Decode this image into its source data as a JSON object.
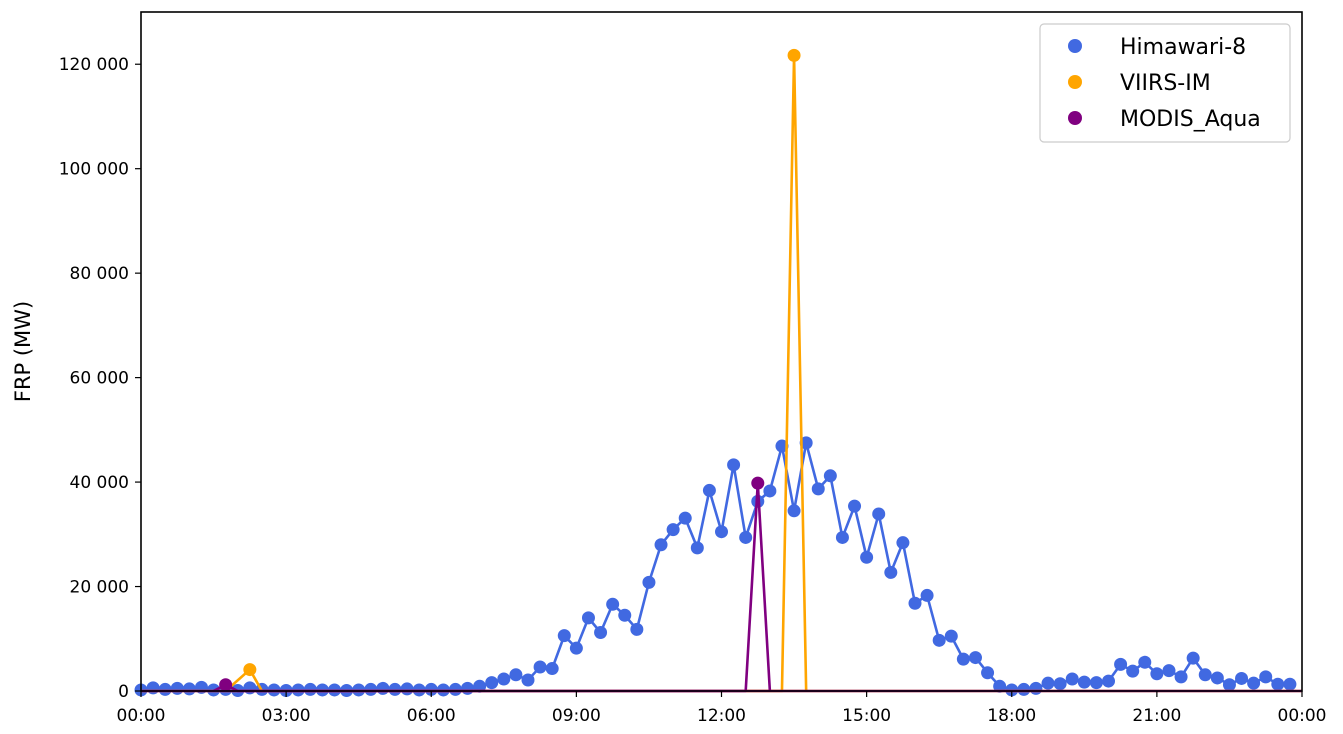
{
  "chart_data": {
    "type": "line",
    "title": "",
    "xlabel": "",
    "ylabel": "FRP (MW)",
    "x_tick_labels": [
      "00:00",
      "03:00",
      "06:00",
      "09:00",
      "12:00",
      "15:00",
      "18:00",
      "21:00",
      "00:00"
    ],
    "y_tick_labels": [
      "0",
      "20 000",
      "40 000",
      "60 000",
      "80 000",
      "100 000",
      "120 000"
    ],
    "y_ticks": [
      0,
      20000,
      40000,
      60000,
      80000,
      100000,
      120000
    ],
    "xlim_hours": [
      0,
      24
    ],
    "ylim": [
      0,
      130000
    ],
    "grid": false,
    "legend_position": "top-right",
    "series": [
      {
        "name": "Himawari-8",
        "color": "#4169e1",
        "x_hours": [
          0.0,
          0.25,
          0.5,
          0.75,
          1.0,
          1.25,
          1.5,
          1.75,
          2.0,
          2.25,
          2.5,
          2.75,
          3.0,
          3.25,
          3.5,
          3.75,
          4.0,
          4.25,
          4.5,
          4.75,
          5.0,
          5.25,
          5.5,
          5.75,
          6.0,
          6.25,
          6.5,
          6.75,
          7.0,
          7.25,
          7.5,
          7.75,
          8.0,
          8.25,
          8.5,
          8.75,
          9.0,
          9.25,
          9.5,
          9.75,
          10.0,
          10.25,
          10.5,
          10.75,
          11.0,
          11.25,
          11.5,
          11.75,
          12.0,
          12.25,
          12.5,
          12.75,
          13.0,
          13.25,
          13.5,
          13.75,
          14.0,
          14.25,
          14.5,
          14.75,
          15.0,
          15.25,
          15.5,
          15.75,
          16.0,
          16.25,
          16.5,
          16.75,
          17.0,
          17.25,
          17.5,
          17.75,
          18.0,
          18.25,
          18.5,
          18.75,
          19.0,
          19.25,
          19.5,
          19.75,
          20.0,
          20.25,
          20.5,
          20.75,
          21.0,
          21.25,
          21.5,
          21.75,
          22.0,
          22.25,
          22.5,
          22.75,
          23.0,
          23.25,
          23.5,
          23.75
        ],
        "values": [
          200,
          600,
          300,
          500,
          400,
          700,
          200,
          300,
          100,
          600,
          300,
          200,
          100,
          200,
          300,
          200,
          200,
          100,
          200,
          300,
          500,
          300,
          400,
          200,
          300,
          200,
          300,
          500,
          900,
          1600,
          2300,
          3100,
          2100,
          4600,
          4300,
          10600,
          8200,
          14000,
          11200,
          16600,
          14500,
          11800,
          20800,
          28000,
          30900,
          33100,
          27400,
          38400,
          30500,
          43300,
          29400,
          36300,
          38300,
          46900,
          34500,
          47500,
          38700,
          41200,
          29400,
          35400,
          25600,
          33900,
          22700,
          28400,
          16800,
          18300,
          9700,
          10500,
          6100,
          6400,
          3500,
          900,
          200,
          300,
          500,
          1500,
          1400,
          2300,
          1700,
          1600,
          1900,
          5100,
          3800,
          5500,
          3300,
          3900,
          2700,
          6300,
          3100,
          2500,
          1200,
          2400,
          1500,
          2700,
          1300,
          1300
        ]
      },
      {
        "name": "VIIRS-IM",
        "color": "#ffa500",
        "x_hours": [
          1.75,
          2.25,
          2.5,
          13.25,
          13.5,
          13.75
        ],
        "values": [
          0,
          4100,
          0,
          0,
          121700,
          0
        ],
        "markers_x_hours": [
          2.25,
          13.5
        ],
        "markers_values": [
          4100,
          121700
        ]
      },
      {
        "name": "MODIS_Aqua",
        "color": "#800080",
        "x_hours": [
          1.5,
          1.75,
          2.0,
          12.5,
          12.75,
          13.0
        ],
        "values": [
          0,
          1200,
          0,
          0,
          39800,
          0
        ],
        "markers_x_hours": [
          1.75,
          12.75
        ],
        "markers_values": [
          1200,
          39800
        ]
      }
    ]
  }
}
